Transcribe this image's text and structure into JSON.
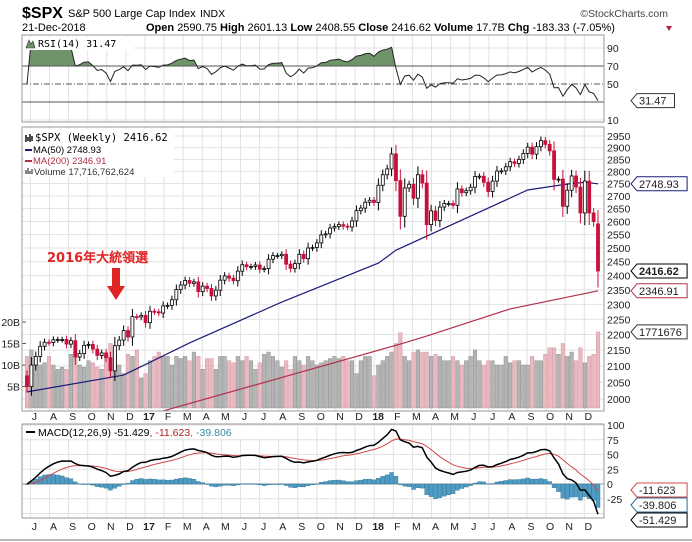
{
  "header": {
    "symbol": "$SPX",
    "name": "S&P 500 Large Cap Index",
    "exchange": "INDX",
    "brand": "©StockCharts.com",
    "date": "21-Dec-2018",
    "open_label": "Open",
    "open": "2590.75",
    "high_label": "High",
    "high": "2601.13",
    "low_label": "Low",
    "low": "2408.55",
    "close_label": "Close",
    "close": "2416.62",
    "volume_label": "Volume",
    "volume": "17.7B",
    "chg_label": "Chg",
    "chg": "-183.33 (-7.05%)",
    "chg_icon": "triangle-down-icon"
  },
  "annotation": {
    "text": "2016年大統領選",
    "color": "#e02424",
    "icon": "arrow-down-icon"
  },
  "rsi_panel": {
    "legend": "RSI(14) 31.47",
    "tag": "31.47",
    "ticks": [
      "90",
      "70",
      "50",
      "10"
    ]
  },
  "price_panel": {
    "legend_main": "$SPX (Weekly) 2416.62",
    "legend_ma50": "MA(50) 2748.93",
    "legend_ma200": "MA(200) 2346.91",
    "legend_volume": "Volume 17,716,762,624",
    "tag_ma50": "2748.93",
    "tag_close": "2416.62",
    "tag_ma200": "2346.91",
    "tag_volume": "1771676",
    "ticks": [
      "2000",
      "2050",
      "2100",
      "2150",
      "2200",
      "2250",
      "2300",
      "2350",
      "2400",
      "2450",
      "2500",
      "2550",
      "2600",
      "2650",
      "2700",
      "2750",
      "2800",
      "2850",
      "2900",
      "2950"
    ],
    "volume_ticks": [
      "5B",
      "10B",
      "15B",
      "20B"
    ]
  },
  "macd_panel": {
    "legend_name": "MACD(12,26,9)",
    "legend_macd": "-51.429",
    "legend_signal": ", -11.623",
    "legend_hist": ", -39.806",
    "tag_signal": "-11.623",
    "tag_hist": "-39.806",
    "tag_macd": "-51.429",
    "ticks": [
      "100",
      "75",
      "50",
      "25",
      "0",
      "-25"
    ]
  },
  "x_axis": {
    "labels": [
      "J",
      "A",
      "S",
      "O",
      "N",
      "D",
      "17",
      "F",
      "M",
      "A",
      "M",
      "J",
      "J",
      "A",
      "S",
      "O",
      "N",
      "D",
      "18",
      "F",
      "M",
      "A",
      "M",
      "J",
      "J",
      "A",
      "S",
      "O",
      "N",
      "D"
    ]
  },
  "colors": {
    "up": "#ffffff",
    "down": "#c8103c",
    "ma50": "#1c1c7a",
    "ma200": "#b03048",
    "vol_up": "#b4b4b4",
    "vol_down": "#eab8c0",
    "rsi_fill": "#6f946a",
    "macd": "#000000",
    "signal": "#d04848",
    "hist": "#4f9cc4"
  },
  "chart_data": {
    "type": "candlestick",
    "interval": "weekly",
    "week_start": "2016-06-24",
    "scale": "log",
    "ylim": [
      1968,
      2985
    ],
    "closes": [
      2037,
      2103,
      2130,
      2162,
      2175,
      2174,
      2183,
      2184,
      2184,
      2169,
      2180,
      2128,
      2139,
      2165,
      2168,
      2153,
      2133,
      2141,
      2126,
      2085,
      2164,
      2182,
      2213,
      2192,
      2259,
      2258,
      2263,
      2239,
      2277,
      2275,
      2271,
      2295,
      2297,
      2316,
      2351,
      2367,
      2383,
      2373,
      2378,
      2344,
      2363,
      2355,
      2329,
      2349,
      2384,
      2399,
      2391,
      2382,
      2416,
      2439,
      2432,
      2433,
      2438,
      2423,
      2425,
      2459,
      2472,
      2472,
      2477,
      2441,
      2426,
      2443,
      2477,
      2461,
      2500,
      2502,
      2519,
      2549,
      2553,
      2575,
      2581,
      2588,
      2582,
      2579,
      2602,
      2642,
      2652,
      2675,
      2683,
      2674,
      2743,
      2786,
      2810,
      2873,
      2762,
      2620,
      2732,
      2747,
      2691,
      2786,
      2752,
      2588,
      2641,
      2604,
      2656,
      2670,
      2670,
      2663,
      2728,
      2713,
      2721,
      2735,
      2779,
      2780,
      2755,
      2718,
      2760,
      2801,
      2802,
      2819,
      2840,
      2833,
      2850,
      2875,
      2902,
      2872,
      2904,
      2930,
      2914,
      2886,
      2767,
      2768,
      2659,
      2723,
      2781,
      2736,
      2633,
      2760,
      2633,
      2600,
      2416.62
    ],
    "last_open": 2590.75,
    "volume_billions": [
      12,
      13.5,
      10,
      10,
      10.5,
      12,
      10,
      9,
      9.5,
      9,
      12.5,
      13,
      10,
      9.5,
      11,
      10.5,
      9.5,
      9,
      12,
      15,
      13.5,
      10,
      8,
      12.5,
      12,
      13.5,
      7,
      8,
      11,
      12,
      13,
      12,
      12,
      10,
      12,
      11.5,
      12,
      11,
      13,
      12,
      9,
      11.5,
      11.5,
      9,
      12,
      12,
      11,
      10.5,
      12,
      11,
      12,
      11,
      9,
      10.5,
      12.5,
      13,
      12,
      11,
      9.5,
      11,
      9,
      12,
      11,
      10,
      12,
      11,
      10,
      10.5,
      11,
      11.5,
      12,
      11.5,
      12,
      11,
      11,
      8,
      11,
      12,
      12,
      7.5,
      10,
      11,
      12,
      13,
      15,
      17.5,
      12,
      11,
      13,
      13.5,
      13,
      13,
      12,
      12.5,
      12,
      11,
      11,
      12,
      11,
      10,
      11,
      12,
      13.5,
      11,
      10,
      11,
      11,
      10,
      10,
      12,
      10.5,
      11,
      11,
      10,
      10,
      12,
      11,
      11,
      12.5,
      14,
      14,
      12.5,
      15,
      12,
      13,
      11,
      14,
      10.5,
      12,
      12.5,
      17.7
    ],
    "ma50": [
      [
        "2016-06-24",
        2021
      ],
      [
        "2016-11-25",
        2072
      ],
      [
        "2016-12-23",
        2098
      ],
      [
        "2017-03-10",
        2173
      ],
      [
        "2017-08-04",
        2308
      ],
      [
        "2018-01-05",
        2445
      ],
      [
        "2018-02-02",
        2492
      ],
      [
        "2018-08-31",
        2724
      ],
      [
        "2018-11-02",
        2748
      ],
      [
        "2018-11-30",
        2755
      ],
      [
        "2018-12-21",
        2748.93
      ]
    ],
    "ma200": [
      [
        "2017-01-27",
        1965
      ],
      [
        "2018-02-09",
        2169
      ],
      [
        "2018-03-23",
        2195
      ],
      [
        "2018-08-03",
        2285
      ],
      [
        "2018-12-21",
        2346.91
      ]
    ],
    "rsi_period": 14,
    "rsi_levels": [
      70,
      50,
      30
    ],
    "macd_params": [
      12,
      26,
      9
    ],
    "macd_last": {
      "macd": -51.429,
      "signal": -11.623,
      "hist": -39.806
    }
  }
}
